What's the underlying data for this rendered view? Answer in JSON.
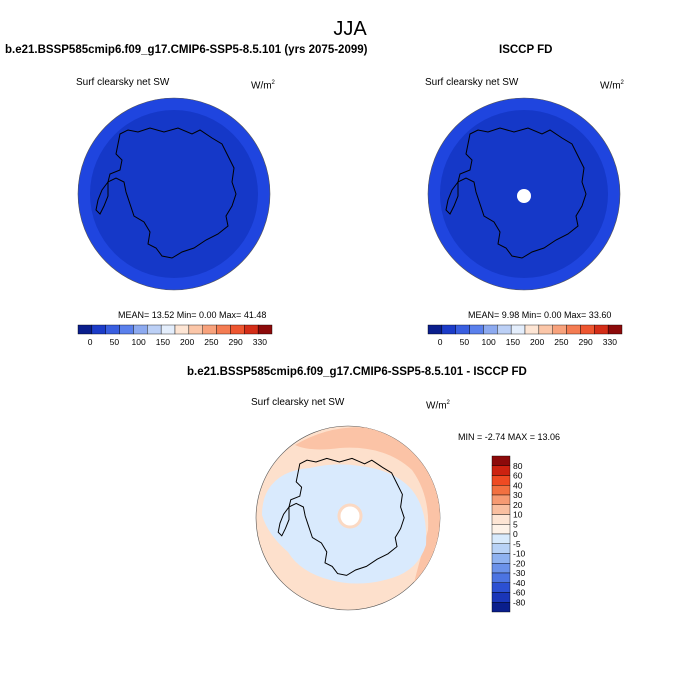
{
  "season": "JJA",
  "panels": [
    {
      "title": "b.e21.BSSP585cmip6.f09_g17.CMIP6-SSP5-8.5.101 (yrs 2075-2099)",
      "variable": "Surf clearsky net SW",
      "units": "W/m",
      "units_exp": "2",
      "stats": "MEAN=  13.52  Min=   0.00  Max=  41.48"
    },
    {
      "title": "ISCCP FD",
      "variable": "Surf clearsky net SW",
      "units": "W/m",
      "units_exp": "2",
      "stats": "MEAN=   9.98  Min=   0.00  Max=  33.60"
    },
    {
      "title": "b.e21.BSSP585cmip6.f09_g17.CMIP6-SSP5-8.5.101 - ISCCP FD",
      "variable": "Surf clearsky net SW",
      "units": "W/m",
      "units_exp": "2",
      "stats": "MIN =  -2.74 MAX =  13.06"
    }
  ],
  "colorbar_abs": {
    "labels": [
      "0",
      "50",
      "100",
      "150",
      "200",
      "250",
      "290",
      "330"
    ],
    "colors": [
      "#0a1e8c",
      "#1c3cc8",
      "#3a5fe0",
      "#5a80ec",
      "#8daaf0",
      "#bcd0f6",
      "#e4eefc",
      "#fde5d4",
      "#fbc6a8",
      "#f8a27c",
      "#f47c52",
      "#ee5630",
      "#d42e18",
      "#8c0a0a"
    ]
  },
  "colorbar_diff": {
    "labels": [
      "80",
      "60",
      "40",
      "30",
      "20",
      "10",
      "5",
      "0",
      "-5",
      "-10",
      "-20",
      "-30",
      "-40",
      "-60",
      "-80"
    ],
    "colors": [
      "#8c0a0a",
      "#cc2210",
      "#ee4a22",
      "#f27040",
      "#f69a72",
      "#f9bfa0",
      "#fde5d4",
      "#fdf2e8",
      "#d8eafc",
      "#b8d2f6",
      "#8fb2f0",
      "#6b92ea",
      "#4c74e2",
      "#2c50d2",
      "#1a36b8",
      "#0a1e8c"
    ]
  },
  "colors": {
    "ocean_abs": "#1f45df",
    "land_abs": "#1538c8",
    "diff_neutral": "#d9eafd",
    "diff_pos_light": "#fde0cc",
    "diff_pos_mid": "#fbc3a6"
  }
}
